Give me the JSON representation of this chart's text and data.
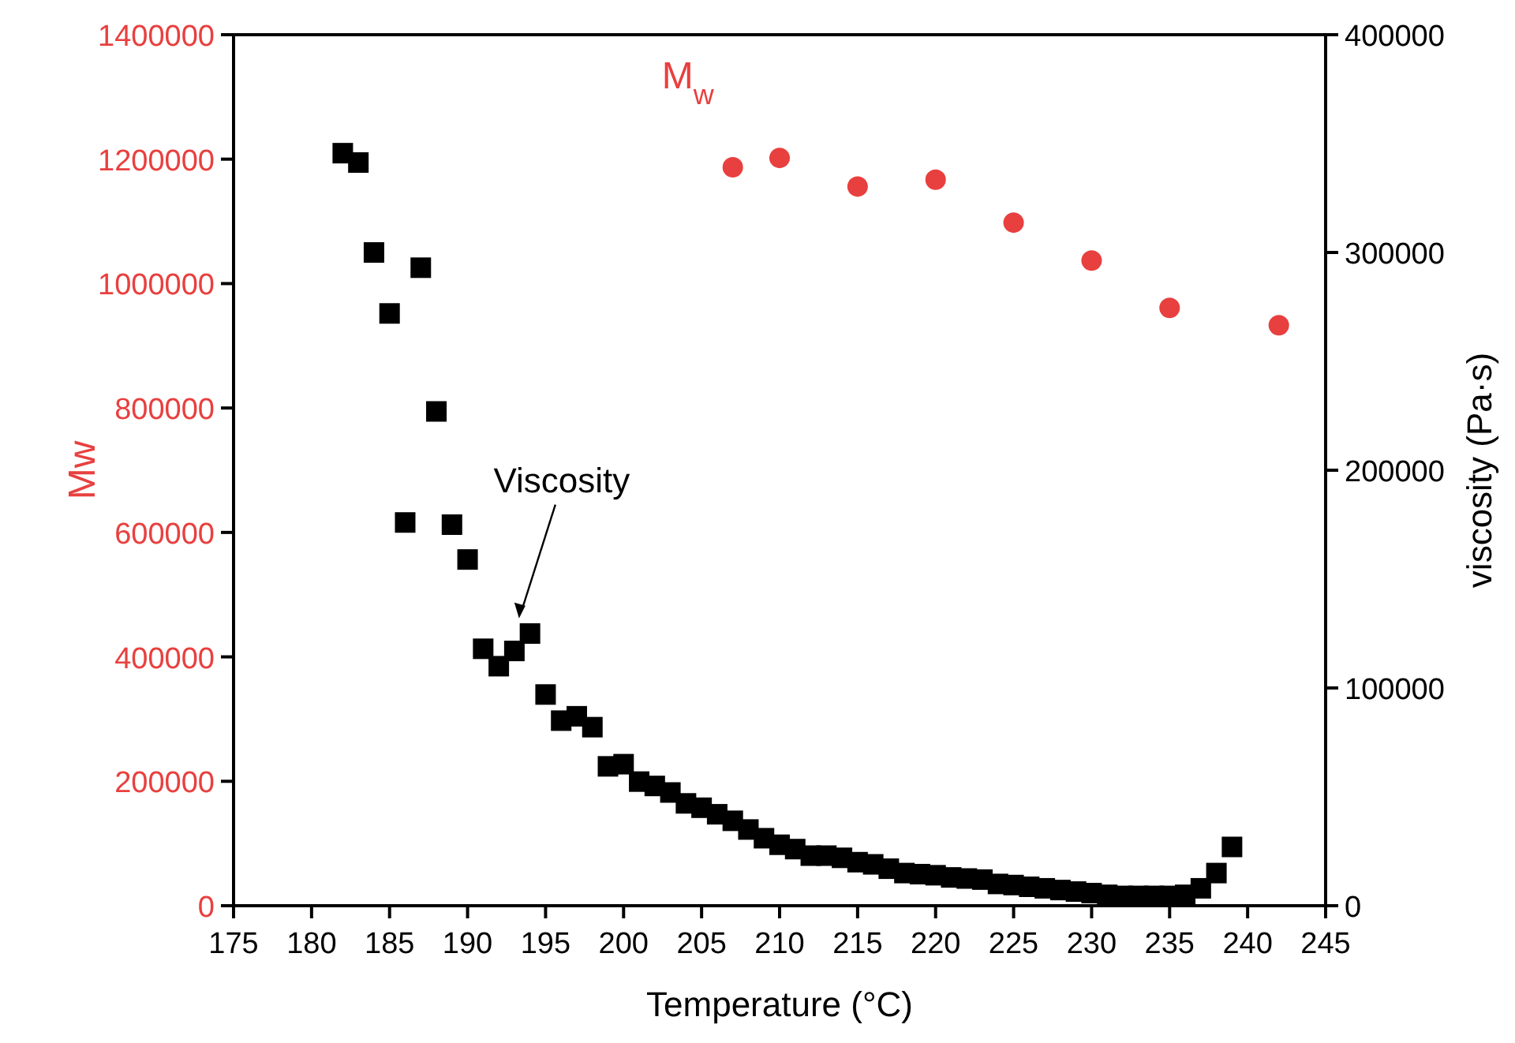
{
  "chart_data": {
    "type": "scatter",
    "xlabel": "Temperature (°C)",
    "ylabel": "Mw",
    "y2label": "viscosity (Pa·s)",
    "xlim": [
      175,
      245
    ],
    "xticks": [
      175,
      180,
      185,
      190,
      195,
      200,
      205,
      210,
      215,
      220,
      225,
      230,
      235,
      240,
      245
    ],
    "ylim": [
      0,
      1400000
    ],
    "yticks": [
      0,
      200000,
      400000,
      600000,
      800000,
      1000000,
      1200000,
      1400000
    ],
    "y2lim": [
      0,
      400000
    ],
    "y2ticks": [
      0,
      100000,
      200000,
      300000,
      400000
    ],
    "grid": false,
    "annotations": [
      "Viscosity"
    ],
    "series": [
      {
        "name": "M$_{w}$",
        "color": "#e8403f",
        "marker": "circle",
        "x": [
          207,
          210,
          215,
          220,
          225,
          230,
          235,
          242
        ],
        "values": [
          1187000,
          1202000,
          1156000,
          1167000,
          1098000,
          1037000,
          961000,
          933000
        ]
      },
      {
        "color": "#000000",
        "marker": "square",
        "axis": "y2",
        "x": [
          182,
          183,
          184,
          185,
          186,
          187,
          188,
          189,
          190,
          191,
          192,
          193,
          194,
          195,
          196,
          197,
          198,
          199,
          200,
          201,
          202,
          203,
          204,
          205,
          206,
          207,
          208,
          209,
          210,
          211,
          212,
          213,
          214,
          215,
          216,
          217,
          218,
          219,
          220,
          221,
          222,
          223,
          224,
          225,
          226,
          227,
          228,
          229,
          230,
          231,
          232,
          233,
          234,
          235,
          236,
          237,
          238,
          239
        ],
        "values": [
          345600,
          341300,
          300000,
          272000,
          176000,
          293000,
          227000,
          175000,
          159000,
          118000,
          110000,
          117000,
          125000,
          97000,
          85000,
          87000,
          82000,
          64000,
          65000,
          57000,
          55000,
          52000,
          47000,
          45000,
          42000,
          39000,
          35000,
          31000,
          28000,
          26000,
          23000,
          23000,
          22000,
          20000,
          19000,
          17000,
          15000,
          14500,
          14000,
          13000,
          12500,
          12000,
          10000,
          9500,
          8700,
          8000,
          7200,
          6500,
          5800,
          5000,
          4500,
          4500,
          4500,
          4500,
          5000,
          8000,
          15000,
          27000
        ]
      }
    ]
  }
}
